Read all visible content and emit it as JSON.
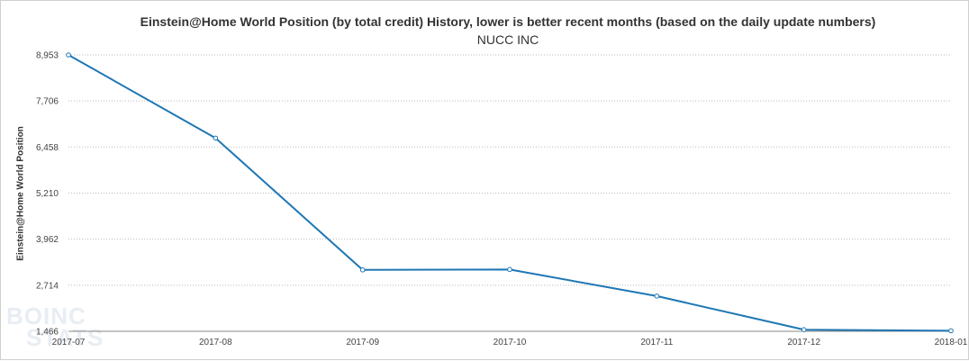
{
  "chart_data": {
    "type": "line",
    "title": "Einstein@Home World Position (by total credit) History, lower is better recent months (based on the daily update numbers)",
    "subtitle": "NUCC INC",
    "xlabel": "",
    "ylabel": "Einstein@Home World Position",
    "categories": [
      "2017-07",
      "2017-08",
      "2017-09",
      "2017-10",
      "2017-11",
      "2017-12",
      "2018-01"
    ],
    "y_ticks": [
      "1,466",
      "2,714",
      "3,962",
      "5,210",
      "6,458",
      "7,706",
      "8,953"
    ],
    "ylim": [
      1466,
      8953
    ],
    "series": [
      {
        "values": [
          8953,
          6700,
          3130,
          3140,
          2420,
          1510,
          1480
        ]
      }
    ],
    "grid": true,
    "colors": {
      "line": "#1f77b4",
      "grid": "#bbbbbb",
      "axis": "#888888"
    }
  },
  "watermark": {
    "line1": "BOINC",
    "line2": "STATS"
  }
}
